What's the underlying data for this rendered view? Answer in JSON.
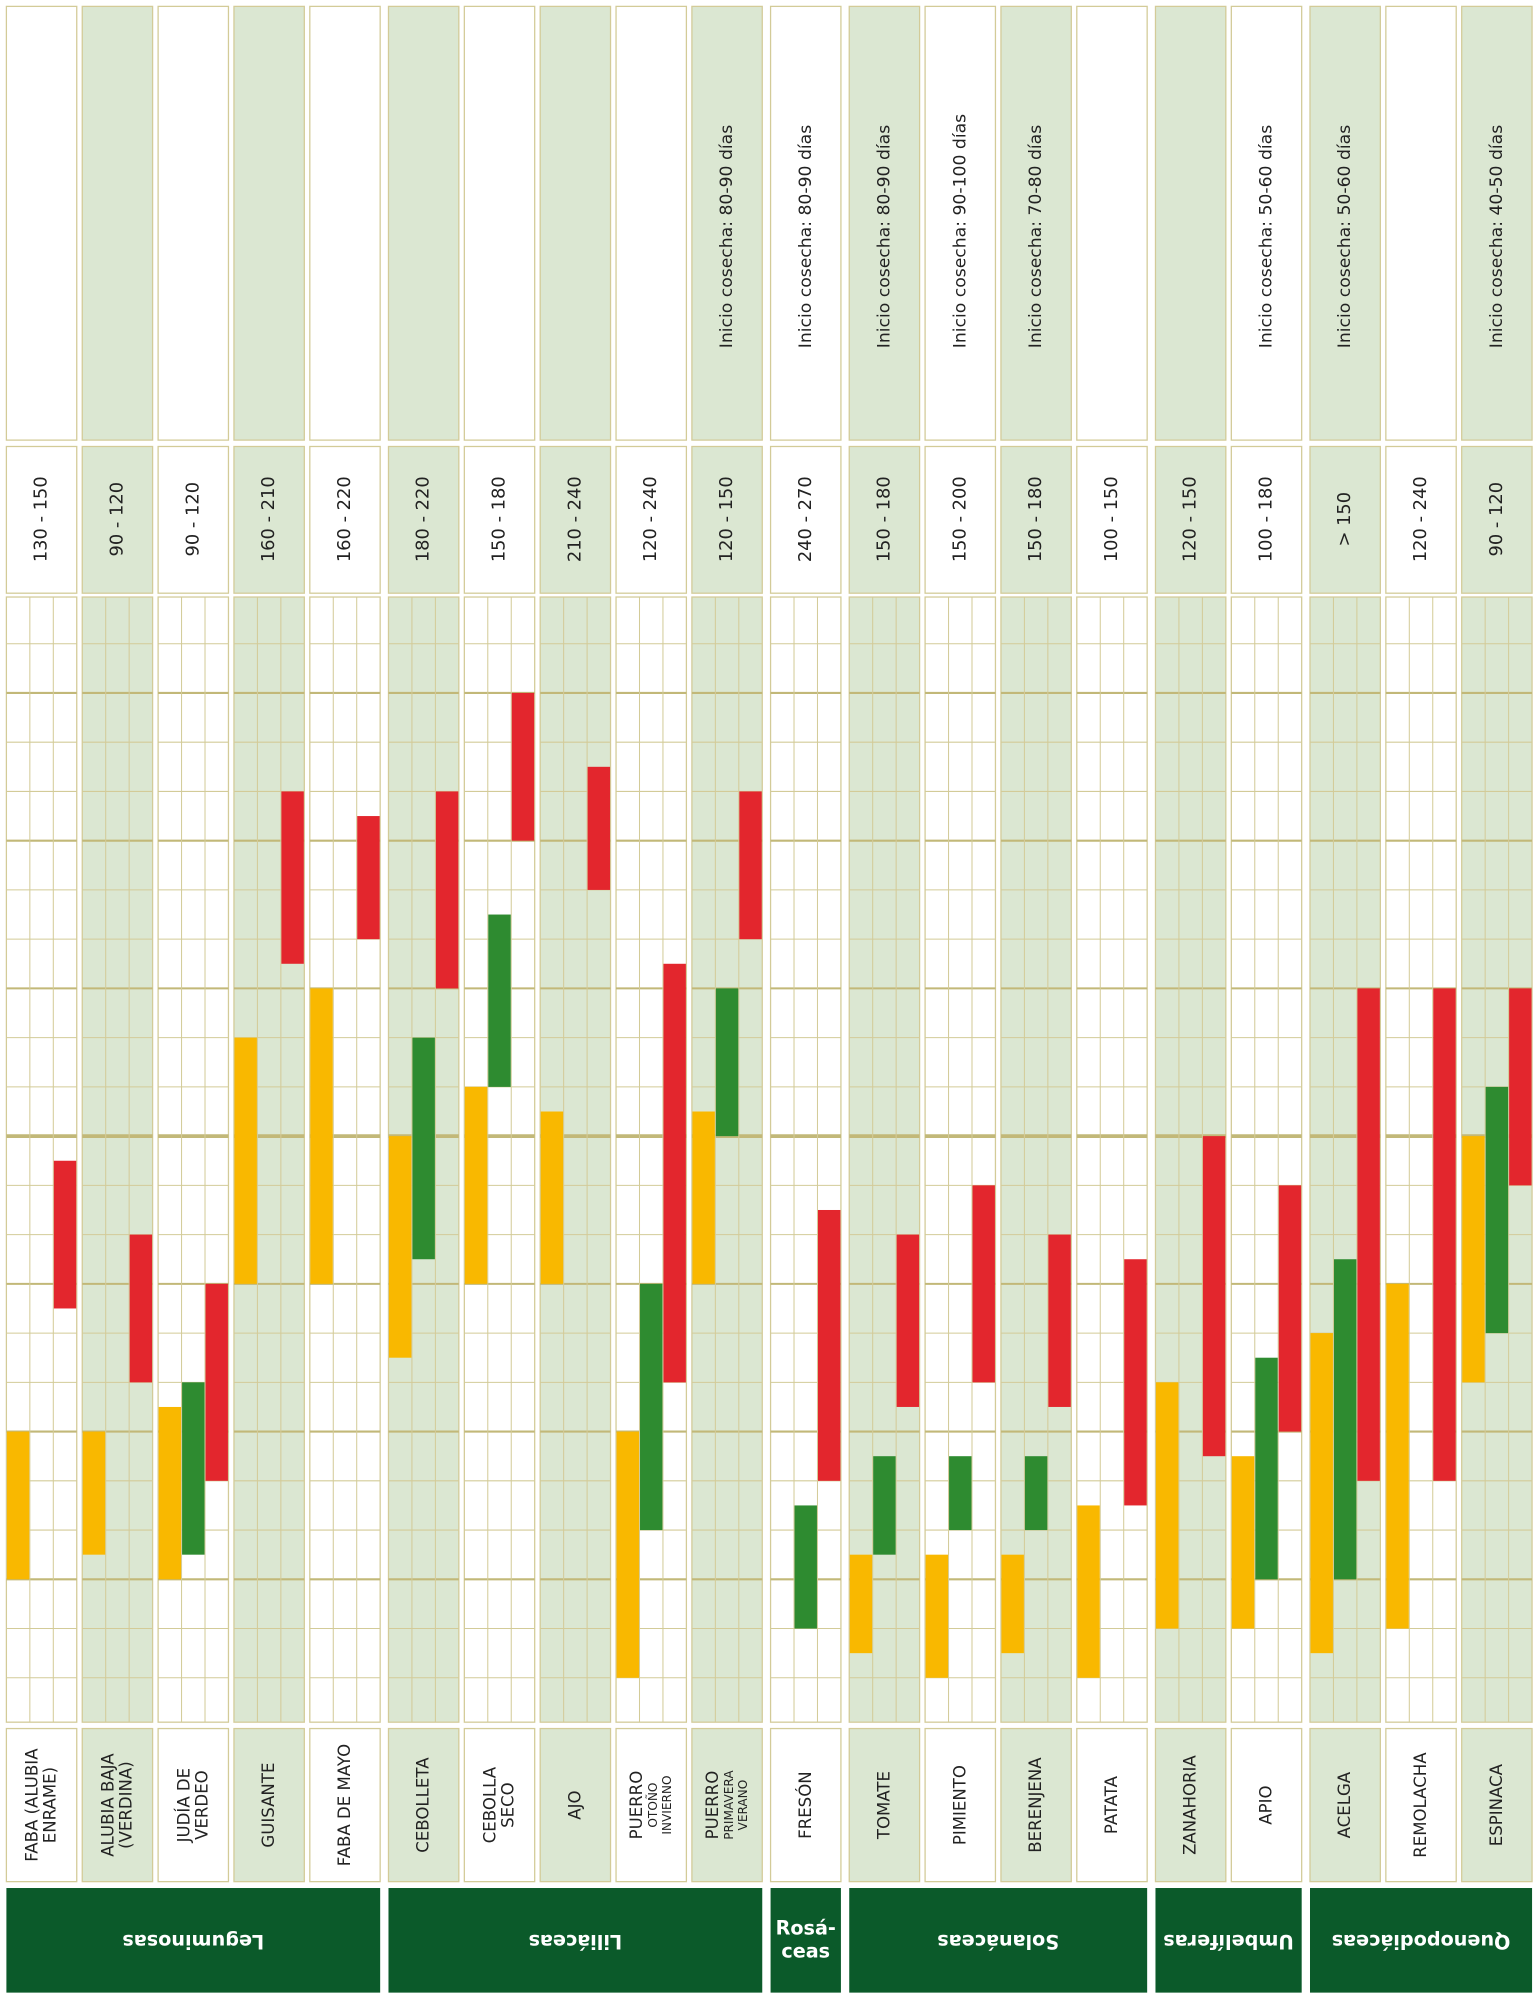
{
  "chart_data": {
    "type": "calendar",
    "tlim": [
      0,
      23
    ],
    "grid": true,
    "colors": {
      "sowing": "#f9b800",
      "transplant": "#2e8b30",
      "harvest": "#e3262d"
    },
    "families": [
      {
        "name": [
          "Leguminosas"
        ],
        "crops": [
          {
            "name": [
              "FABA (ALUBIA",
              "ENRAME)"
            ],
            "shaded": false,
            "days": "130 - 150",
            "sowing": [
              3,
              6
            ],
            "transplant": null,
            "harvest": [
              8.5,
              11.5
            ]
          },
          {
            "name": [
              "ALUBIA BAJA",
              "(VERDINA)"
            ],
            "shaded": true,
            "days": "90 - 120",
            "sowing": [
              3.5,
              6
            ],
            "transplant": null,
            "harvest": [
              7,
              10
            ]
          },
          {
            "name": [
              "JUDÍA DE",
              "VERDEO"
            ],
            "shaded": false,
            "days": "90 - 120",
            "sowing": [
              3,
              6.5
            ],
            "transplant": [
              3.5,
              7
            ],
            "harvest": [
              5,
              9
            ]
          },
          {
            "name": [
              "GUISANTE"
            ],
            "shaded": true,
            "days": "160 - 210",
            "sowing": [
              9,
              14
            ],
            "transplant": null,
            "harvest": [
              15.5,
              19
            ]
          },
          {
            "name": [
              "FABA DE MAYO"
            ],
            "shaded": false,
            "days": "160 - 220",
            "sowing": [
              9,
              15
            ],
            "transplant": null,
            "harvest": [
              16,
              18.5
            ]
          }
        ]
      },
      {
        "name": [
          "Liliáceas"
        ],
        "crops": [
          {
            "name": [
              "CEBOLLETA"
            ],
            "shaded": true,
            "days": "180 - 220",
            "sowing": [
              7.5,
              12
            ],
            "transplant": [
              9.5,
              14
            ],
            "harvest": [
              15,
              19
            ]
          },
          {
            "name": [
              "CEBOLLA",
              "SECO"
            ],
            "shaded": false,
            "days": "150 - 180",
            "sowing": [
              9,
              13
            ],
            "transplant": [
              13,
              16.5
            ],
            "harvest": [
              18,
              21
            ]
          },
          {
            "name": [
              "AJO"
            ],
            "shaded": true,
            "days": "210 - 240",
            "sowing": [
              9,
              12.5
            ],
            "transplant": null,
            "harvest": [
              17,
              19.5
            ]
          },
          {
            "name": [
              "PUERRO"
            ],
            "detail": [
              "OTOÑO",
              "INVIERNO"
            ],
            "shaded": false,
            "days": "120 - 240",
            "sowing": [
              1,
              6
            ],
            "transplant": [
              4,
              9
            ],
            "harvest": [
              7,
              15.5
            ]
          },
          {
            "name": [
              "PUERRO"
            ],
            "detail": [
              "PRIMAVERA",
              "VERANO"
            ],
            "shaded": true,
            "days": "120 - 150",
            "note": "Inicio cosecha: 80-90 días",
            "sowing": [
              9,
              12.5
            ],
            "transplant": [
              12,
              15
            ],
            "harvest": [
              16,
              19
            ]
          }
        ]
      },
      {
        "name": [
          "Rosá-",
          "ceas"
        ],
        "crops": [
          {
            "name": [
              "FRESÓN"
            ],
            "shaded": false,
            "days": "240 - 270",
            "note": "Inicio cosecha: 80-90 días",
            "sowing": null,
            "transplant": [
              2,
              4.5
            ],
            "harvest": [
              5,
              10.5
            ]
          }
        ]
      },
      {
        "name": [
          "Solanáceas"
        ],
        "crops": [
          {
            "name": [
              "TOMATE"
            ],
            "shaded": true,
            "days": "150 - 180",
            "note": "Inicio cosecha: 80-90 días",
            "sowing": [
              1.5,
              3.5
            ],
            "transplant": [
              3.5,
              5.5
            ],
            "harvest": [
              6.5,
              10
            ]
          },
          {
            "name": [
              "PIMIENTO"
            ],
            "shaded": false,
            "days": "150 - 200",
            "note": "Inicio cosecha: 90-100 días",
            "sowing": [
              1,
              3.5
            ],
            "transplant": [
              4,
              5.5
            ],
            "harvest": [
              7,
              11
            ]
          },
          {
            "name": [
              "BERENJENA"
            ],
            "shaded": true,
            "days": "150 - 180",
            "note": "Inicio cosecha: 70-80 días",
            "sowing": [
              1.5,
              3.5
            ],
            "transplant": [
              4,
              5.5
            ],
            "harvest": [
              6.5,
              10
            ]
          },
          {
            "name": [
              "PATATA"
            ],
            "shaded": false,
            "days": "100 - 150",
            "sowing": [
              1,
              4.5
            ],
            "transplant": null,
            "harvest": [
              4.5,
              9.5
            ]
          }
        ]
      },
      {
        "name": [
          "Umbelíferas"
        ],
        "crops": [
          {
            "name": [
              "ZANAHORIA"
            ],
            "shaded": true,
            "days": "120 - 150",
            "sowing": [
              2,
              7
            ],
            "transplant": null,
            "harvest": [
              5.5,
              12
            ]
          },
          {
            "name": [
              "APIO"
            ],
            "shaded": false,
            "days": "100 - 180",
            "note": "Inicio cosecha: 50-60 días",
            "sowing": [
              2,
              5.5
            ],
            "transplant": [
              3,
              7.5
            ],
            "harvest": [
              6,
              11
            ]
          }
        ]
      },
      {
        "name": [
          "Quenopodiáceas"
        ],
        "crops": [
          {
            "name": [
              "ACELGA"
            ],
            "shaded": true,
            "days": "> 150",
            "note": "Inicio cosecha: 50-60 días",
            "sowing": [
              1.5,
              8
            ],
            "transplant": [
              3,
              9.5
            ],
            "harvest": [
              5,
              15
            ]
          },
          {
            "name": [
              "REMOLACHA"
            ],
            "shaded": false,
            "days": "120 - 240",
            "sowing": [
              2,
              9
            ],
            "transplant": null,
            "harvest": [
              5,
              15
            ]
          },
          {
            "name": [
              "ESPINACA"
            ],
            "shaded": true,
            "days": "90 - 120",
            "note": "Inicio cosecha: 40-50 días",
            "sowing": [
              7,
              12
            ],
            "transplant": [
              8,
              13
            ],
            "harvest": [
              11,
              15
            ]
          }
        ]
      }
    ]
  }
}
